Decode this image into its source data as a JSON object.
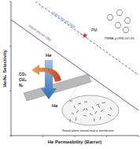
{
  "chart_data": {
    "type": "scatter",
    "x_label": "He Permeability (Barrer)",
    "y_label": "He/N₂ Selectivity",
    "log": true,
    "tick_labels": false,
    "xlim": [
      1,
      10000
    ],
    "ylim": [
      1,
      1000
    ],
    "xticks": [
      1,
      10,
      100,
      1000,
      10000
    ],
    "yticks": [
      1,
      10,
      100,
      1000
    ],
    "series": [
      {
        "type": "line",
        "line_style": "solid",
        "color": "#7a4fa0",
        "x": [
          1,
          10000
        ],
        "values": [
          393,
          3.67
        ]
      },
      {
        "type": "line",
        "line_style": "dashed",
        "color": "#5b6fb5",
        "x": [
          5.8,
          10000
        ],
        "values": [
          1000,
          22.9
        ]
      },
      {
        "type": "scatter",
        "marker": "star",
        "color": "#d9352b",
        "x": [
          209
        ],
        "values": [
          174
        ]
      }
    ],
    "annotations": [
      {
        "text": "Upper bound 2008"
      },
      {
        "text": "Upper bound 1991"
      },
      {
        "text": "PM"
      },
      {
        "text": "He"
      },
      {
        "text": "CO₂"
      },
      {
        "text": "CH₄"
      },
      {
        "text": "N₂"
      },
      {
        "text": "He"
      },
      {
        "text": "PMMA-g-GNS-UiO-66"
      },
      {
        "text": "Stand-alone mixed-matrix membrane"
      }
    ]
  }
}
